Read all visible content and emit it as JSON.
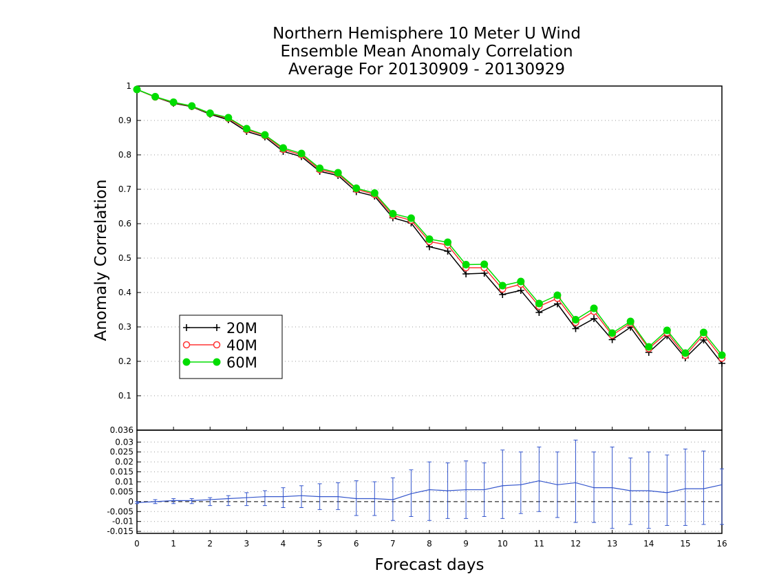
{
  "chart_data": {
    "type": "line",
    "title": [
      "Northern Hemisphere 10 Meter U Wind",
      "Ensemble Mean Anomaly Correlation",
      "Average For 20130909 - 20130929"
    ],
    "xlabel": "Forecast days",
    "ylabel": "Anomaly Correlation",
    "xlim": [
      0,
      16
    ],
    "x_ticks": [
      "0",
      "1",
      "2",
      "3",
      "4",
      "5",
      "6",
      "7",
      "8",
      "9",
      "10",
      "11",
      "12",
      "13",
      "14",
      "15",
      "16"
    ],
    "top_panel": {
      "ylim": [
        0,
        1
      ],
      "y_ticks": [
        "0.1",
        "0.2",
        "0.3",
        "0.4",
        "0.5",
        "0.6",
        "0.7",
        "0.8",
        "0.9",
        "1"
      ],
      "grid": "dotted-horizontal",
      "legend_placement": "lower-left",
      "x": [
        0,
        0.5,
        1,
        1.5,
        2,
        2.5,
        3,
        3.5,
        4,
        4.5,
        5,
        5.5,
        6,
        6.5,
        7,
        7.5,
        8,
        8.5,
        9,
        9.5,
        10,
        10.5,
        11,
        11.5,
        12,
        12.5,
        13,
        13.5,
        14,
        14.5,
        15,
        15.5,
        16
      ],
      "series": [
        {
          "name": "20M",
          "color": "#000000",
          "marker": "plus",
          "values": [
            0.99,
            0.968,
            0.95,
            0.94,
            0.918,
            0.902,
            0.868,
            0.852,
            0.81,
            0.795,
            0.752,
            0.74,
            0.693,
            0.68,
            0.617,
            0.602,
            0.533,
            0.52,
            0.454,
            0.456,
            0.394,
            0.406,
            0.342,
            0.367,
            0.295,
            0.324,
            0.263,
            0.299,
            0.226,
            0.274,
            0.21,
            0.262,
            0.194
          ]
        },
        {
          "name": "40M",
          "color": "#ff3333",
          "marker": "open-circle",
          "values": [
            0.99,
            0.968,
            0.952,
            0.941,
            0.92,
            0.906,
            0.873,
            0.856,
            0.816,
            0.8,
            0.757,
            0.745,
            0.7,
            0.685,
            0.624,
            0.61,
            0.548,
            0.538,
            0.472,
            0.472,
            0.41,
            0.424,
            0.36,
            0.383,
            0.313,
            0.345,
            0.276,
            0.311,
            0.237,
            0.283,
            0.217,
            0.277,
            0.209
          ]
        },
        {
          "name": "60M",
          "color": "#00dd00",
          "marker": "filled-circle",
          "values": [
            0.99,
            0.969,
            0.953,
            0.942,
            0.921,
            0.908,
            0.876,
            0.858,
            0.82,
            0.804,
            0.761,
            0.748,
            0.703,
            0.689,
            0.629,
            0.616,
            0.555,
            0.546,
            0.481,
            0.482,
            0.42,
            0.432,
            0.368,
            0.392,
            0.321,
            0.354,
            0.282,
            0.316,
            0.242,
            0.29,
            0.224,
            0.284,
            0.218
          ]
        }
      ]
    },
    "bottom_panel": {
      "ylim": [
        -0.016,
        0.036
      ],
      "y_ticks": [
        "0.036",
        "0.03",
        "0.025",
        "0.02",
        "0.015",
        "0.01",
        "0.005",
        "0",
        "-0.005",
        "-0.01",
        "-0.015"
      ],
      "grid": "dotted-horizontal",
      "zero_line": "dashed",
      "series": [
        {
          "color": "#3355cc",
          "x": [
            0,
            0.5,
            1,
            1.5,
            2,
            2.5,
            3,
            3.5,
            4,
            4.5,
            5,
            5.5,
            6,
            6.5,
            7,
            7.5,
            8,
            8.5,
            9,
            9.5,
            10,
            10.5,
            11,
            11.5,
            12,
            12.5,
            13,
            13.5,
            14,
            14.5,
            15,
            15.5,
            16
          ],
          "values": [
            -0.0005,
            0,
            0.0005,
            0.0005,
            0.001,
            0.0015,
            0.002,
            0.0025,
            0.0025,
            0.003,
            0.0025,
            0.0025,
            0.0015,
            0.0015,
            0.001,
            0.004,
            0.006,
            0.0055,
            0.006,
            0.006,
            0.008,
            0.0085,
            0.0105,
            0.0085,
            0.0095,
            0.007,
            0.007,
            0.0055,
            0.0055,
            0.0045,
            0.0065,
            0.0065,
            0.0085
          ],
          "error_low": [
            -0.001,
            -0.001,
            -0.001,
            -0.001,
            -0.002,
            -0.002,
            -0.002,
            -0.002,
            -0.003,
            -0.003,
            -0.004,
            -0.004,
            -0.007,
            -0.007,
            -0.0095,
            -0.0075,
            -0.0095,
            -0.0085,
            -0.0085,
            -0.0075,
            -0.0085,
            -0.006,
            -0.005,
            -0.008,
            -0.0105,
            -0.0105,
            -0.0135,
            -0.0115,
            -0.0135,
            -0.012,
            -0.012,
            -0.0115,
            -0.0115
          ],
          "error_high": [
            0,
            0.001,
            0.0015,
            0.0015,
            0.002,
            0.003,
            0.0045,
            0.0055,
            0.007,
            0.008,
            0.009,
            0.0095,
            0.0105,
            0.01,
            0.012,
            0.016,
            0.02,
            0.0195,
            0.0205,
            0.0195,
            0.026,
            0.025,
            0.0275,
            0.025,
            0.031,
            0.025,
            0.0275,
            0.022,
            0.025,
            0.0235,
            0.0265,
            0.0255,
            0.0165
          ]
        }
      ]
    }
  }
}
